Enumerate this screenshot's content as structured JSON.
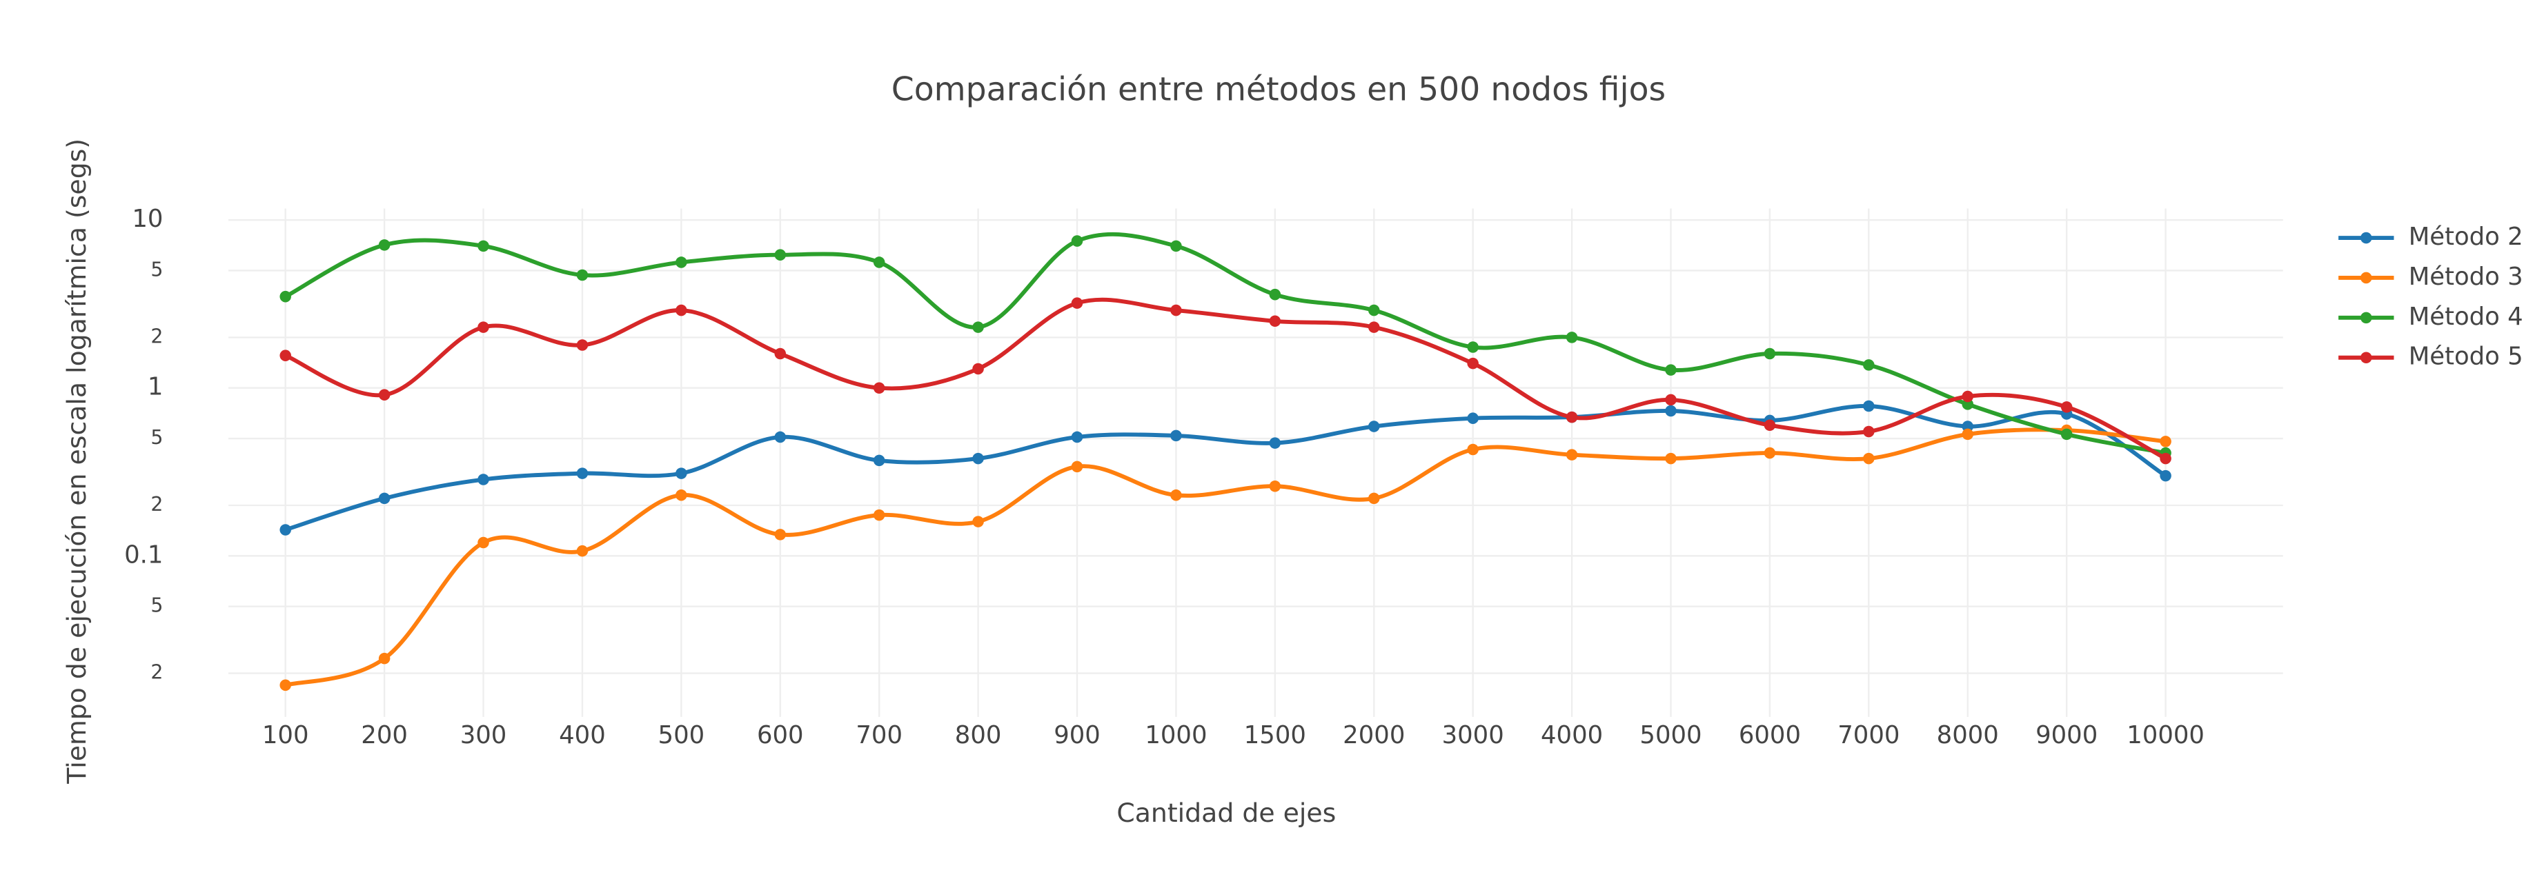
{
  "chart_data": {
    "type": "line",
    "title": "Comparación entre métodos en 500 nodos fijos",
    "x_label": "Cantidad de ejes",
    "y_label": "Tiempo de ejecución en escala logarítmica (segs)",
    "log_y": true,
    "grid": true,
    "legend_position": "right",
    "categories": [
      "100",
      "200",
      "300",
      "400",
      "500",
      "600",
      "700",
      "800",
      "900",
      "1000",
      "1500",
      "2000",
      "3000",
      "4000",
      "5000",
      "6000",
      "7000",
      "8000",
      "9000",
      "10000"
    ],
    "ylim": [
      0.011,
      11.7
    ],
    "yticks": [
      {
        "value": 0.02,
        "label": "2"
      },
      {
        "value": 0.05,
        "label": "5"
      },
      0.1,
      {
        "value": 0.2,
        "label": "2"
      },
      {
        "value": 0.5,
        "label": "5"
      },
      1,
      {
        "value": 2,
        "label": "2"
      },
      {
        "value": 5,
        "label": "5"
      },
      10
    ],
    "series": [
      {
        "name": "Método 2",
        "color": "#1f77b4",
        "values": [
          0.143,
          0.22,
          0.285,
          0.31,
          0.31,
          0.51,
          0.37,
          0.38,
          0.51,
          0.52,
          0.47,
          0.59,
          0.66,
          0.67,
          0.73,
          0.64,
          0.78,
          0.59,
          0.7,
          0.3
        ]
      },
      {
        "name": "Método 3",
        "color": "#ff7f0e",
        "values": [
          0.017,
          0.0245,
          0.12,
          0.107,
          0.23,
          0.134,
          0.175,
          0.16,
          0.34,
          0.23,
          0.26,
          0.22,
          0.43,
          0.4,
          0.38,
          0.41,
          0.38,
          0.53,
          0.56,
          0.48
        ]
      },
      {
        "name": "Método 4",
        "color": "#2ca02c",
        "values": [
          3.5,
          7.1,
          7.0,
          4.7,
          5.6,
          6.2,
          5.6,
          2.3,
          7.5,
          7.0,
          3.6,
          2.9,
          1.75,
          2.0,
          1.28,
          1.6,
          1.37,
          0.8,
          0.53,
          0.41
        ]
      },
      {
        "name": "Método 5",
        "color": "#d62728",
        "values": [
          1.56,
          0.91,
          2.3,
          1.8,
          2.9,
          1.6,
          1.0,
          1.3,
          3.2,
          2.9,
          2.5,
          2.3,
          1.4,
          0.67,
          0.85,
          0.6,
          0.55,
          0.89,
          0.77,
          0.38
        ]
      }
    ]
  }
}
